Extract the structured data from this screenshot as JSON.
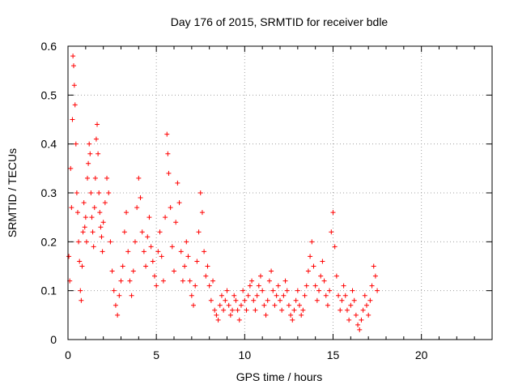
{
  "chart_data": {
    "type": "scatter",
    "title": "Day 176 of 2015, SRMTID for receiver bdle",
    "xlabel": "GPS time / hours",
    "ylabel": "SRMTID / TECUs",
    "xlim": [
      0,
      24
    ],
    "ylim": [
      0,
      0.6
    ],
    "xticks": [
      0,
      5,
      10,
      15,
      20
    ],
    "xtick_labels": [
      "0",
      "5",
      "10",
      "15",
      "20"
    ],
    "yticks": [
      0,
      0.1,
      0.2,
      0.3,
      0.4,
      0.5,
      0.6
    ],
    "ytick_labels": [
      "0",
      "0.1",
      "0.2",
      "0.3",
      "0.4",
      "0.5",
      "0.6"
    ],
    "grid": true,
    "marker": "plus",
    "marker_color": "#ff0000",
    "series": [
      {
        "name": "bdle",
        "points": [
          [
            0.05,
            0.17
          ],
          [
            0.1,
            0.12
          ],
          [
            0.15,
            0.35
          ],
          [
            0.2,
            0.27
          ],
          [
            0.25,
            0.45
          ],
          [
            0.28,
            0.58
          ],
          [
            0.32,
            0.56
          ],
          [
            0.36,
            0.52
          ],
          [
            0.4,
            0.48
          ],
          [
            0.45,
            0.4
          ],
          [
            0.5,
            0.3
          ],
          [
            0.55,
            0.26
          ],
          [
            0.6,
            0.2
          ],
          [
            0.65,
            0.16
          ],
          [
            0.7,
            0.1
          ],
          [
            0.75,
            0.08
          ],
          [
            0.8,
            0.15
          ],
          [
            0.85,
            0.22
          ],
          [
            0.9,
            0.28
          ],
          [
            0.95,
            0.23
          ],
          [
            1.0,
            0.25
          ],
          [
            1.05,
            0.2
          ],
          [
            1.1,
            0.33
          ],
          [
            1.15,
            0.36
          ],
          [
            1.2,
            0.4
          ],
          [
            1.25,
            0.38
          ],
          [
            1.3,
            0.3
          ],
          [
            1.35,
            0.25
          ],
          [
            1.4,
            0.22
          ],
          [
            1.45,
            0.19
          ],
          [
            1.5,
            0.27
          ],
          [
            1.55,
            0.33
          ],
          [
            1.6,
            0.41
          ],
          [
            1.65,
            0.44
          ],
          [
            1.7,
            0.38
          ],
          [
            1.75,
            0.3
          ],
          [
            1.8,
            0.26
          ],
          [
            1.85,
            0.23
          ],
          [
            1.9,
            0.21
          ],
          [
            1.95,
            0.18
          ],
          [
            2.0,
            0.24
          ],
          [
            2.1,
            0.28
          ],
          [
            2.2,
            0.33
          ],
          [
            2.3,
            0.3
          ],
          [
            2.4,
            0.2
          ],
          [
            2.5,
            0.14
          ],
          [
            2.6,
            0.1
          ],
          [
            2.7,
            0.07
          ],
          [
            2.8,
            0.05
          ],
          [
            2.9,
            0.09
          ],
          [
            3.0,
            0.12
          ],
          [
            3.1,
            0.15
          ],
          [
            3.2,
            0.22
          ],
          [
            3.3,
            0.26
          ],
          [
            3.4,
            0.18
          ],
          [
            3.5,
            0.12
          ],
          [
            3.6,
            0.09
          ],
          [
            3.7,
            0.14
          ],
          [
            3.8,
            0.2
          ],
          [
            3.9,
            0.27
          ],
          [
            4.0,
            0.33
          ],
          [
            4.1,
            0.29
          ],
          [
            4.2,
            0.22
          ],
          [
            4.3,
            0.18
          ],
          [
            4.4,
            0.15
          ],
          [
            4.5,
            0.21
          ],
          [
            4.6,
            0.25
          ],
          [
            4.7,
            0.19
          ],
          [
            4.8,
            0.16
          ],
          [
            4.9,
            0.13
          ],
          [
            5.0,
            0.11
          ],
          [
            5.1,
            0.18
          ],
          [
            5.2,
            0.22
          ],
          [
            5.3,
            0.17
          ],
          [
            5.4,
            0.12
          ],
          [
            5.5,
            0.25
          ],
          [
            5.6,
            0.42
          ],
          [
            5.65,
            0.38
          ],
          [
            5.7,
            0.34
          ],
          [
            5.8,
            0.27
          ],
          [
            5.9,
            0.19
          ],
          [
            6.0,
            0.14
          ],
          [
            6.1,
            0.24
          ],
          [
            6.2,
            0.32
          ],
          [
            6.3,
            0.28
          ],
          [
            6.4,
            0.18
          ],
          [
            6.5,
            0.12
          ],
          [
            6.6,
            0.15
          ],
          [
            6.7,
            0.2
          ],
          [
            6.8,
            0.17
          ],
          [
            6.9,
            0.12
          ],
          [
            7.0,
            0.09
          ],
          [
            7.1,
            0.07
          ],
          [
            7.2,
            0.11
          ],
          [
            7.3,
            0.16
          ],
          [
            7.4,
            0.22
          ],
          [
            7.5,
            0.3
          ],
          [
            7.6,
            0.26
          ],
          [
            7.7,
            0.18
          ],
          [
            7.8,
            0.13
          ],
          [
            7.9,
            0.15
          ],
          [
            8.0,
            0.11
          ],
          [
            8.1,
            0.08
          ],
          [
            8.2,
            0.12
          ],
          [
            8.3,
            0.06
          ],
          [
            8.4,
            0.05
          ],
          [
            8.5,
            0.04
          ],
          [
            8.6,
            0.07
          ],
          [
            8.7,
            0.09
          ],
          [
            8.8,
            0.06
          ],
          [
            8.9,
            0.08
          ],
          [
            9.0,
            0.1
          ],
          [
            9.1,
            0.07
          ],
          [
            9.2,
            0.05
          ],
          [
            9.3,
            0.06
          ],
          [
            9.4,
            0.09
          ],
          [
            9.5,
            0.08
          ],
          [
            9.6,
            0.06
          ],
          [
            9.7,
            0.04
          ],
          [
            9.8,
            0.07
          ],
          [
            9.9,
            0.1
          ],
          [
            10.0,
            0.08
          ],
          [
            10.1,
            0.06
          ],
          [
            10.2,
            0.09
          ],
          [
            10.3,
            0.11
          ],
          [
            10.4,
            0.12
          ],
          [
            10.5,
            0.08
          ],
          [
            10.6,
            0.06
          ],
          [
            10.7,
            0.09
          ],
          [
            10.8,
            0.11
          ],
          [
            10.9,
            0.13
          ],
          [
            11.0,
            0.1
          ],
          [
            11.1,
            0.07
          ],
          [
            11.2,
            0.05
          ],
          [
            11.3,
            0.08
          ],
          [
            11.4,
            0.12
          ],
          [
            11.5,
            0.14
          ],
          [
            11.6,
            0.1
          ],
          [
            11.7,
            0.07
          ],
          [
            11.8,
            0.09
          ],
          [
            11.9,
            0.11
          ],
          [
            12.0,
            0.08
          ],
          [
            12.1,
            0.06
          ],
          [
            12.2,
            0.09
          ],
          [
            12.3,
            0.12
          ],
          [
            12.4,
            0.1
          ],
          [
            12.5,
            0.07
          ],
          [
            12.6,
            0.05
          ],
          [
            12.7,
            0.04
          ],
          [
            12.8,
            0.06
          ],
          [
            12.9,
            0.08
          ],
          [
            13.0,
            0.1
          ],
          [
            13.1,
            0.07
          ],
          [
            13.2,
            0.05
          ],
          [
            13.3,
            0.06
          ],
          [
            13.4,
            0.09
          ],
          [
            13.5,
            0.11
          ],
          [
            13.6,
            0.14
          ],
          [
            13.7,
            0.17
          ],
          [
            13.8,
            0.2
          ],
          [
            13.9,
            0.15
          ],
          [
            14.0,
            0.11
          ],
          [
            14.1,
            0.08
          ],
          [
            14.2,
            0.1
          ],
          [
            14.3,
            0.13
          ],
          [
            14.4,
            0.16
          ],
          [
            14.5,
            0.12
          ],
          [
            14.6,
            0.09
          ],
          [
            14.7,
            0.07
          ],
          [
            14.8,
            0.1
          ],
          [
            14.9,
            0.22
          ],
          [
            15.0,
            0.26
          ],
          [
            15.1,
            0.19
          ],
          [
            15.2,
            0.13
          ],
          [
            15.3,
            0.09
          ],
          [
            15.4,
            0.06
          ],
          [
            15.5,
            0.08
          ],
          [
            15.6,
            0.11
          ],
          [
            15.7,
            0.09
          ],
          [
            15.8,
            0.06
          ],
          [
            15.9,
            0.04
          ],
          [
            16.0,
            0.07
          ],
          [
            16.1,
            0.1
          ],
          [
            16.2,
            0.08
          ],
          [
            16.3,
            0.05
          ],
          [
            16.4,
            0.03
          ],
          [
            16.5,
            0.02
          ],
          [
            16.6,
            0.04
          ],
          [
            16.7,
            0.06
          ],
          [
            16.8,
            0.09
          ],
          [
            16.9,
            0.07
          ],
          [
            17.0,
            0.05
          ],
          [
            17.1,
            0.08
          ],
          [
            17.2,
            0.11
          ],
          [
            17.3,
            0.15
          ],
          [
            17.4,
            0.13
          ],
          [
            17.5,
            0.1
          ]
        ]
      }
    ]
  }
}
